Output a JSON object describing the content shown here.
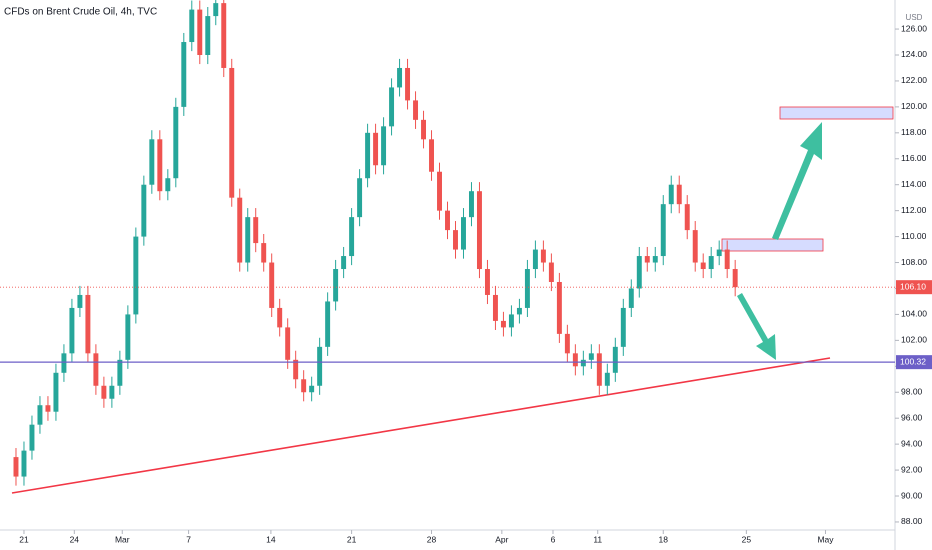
{
  "chart_data": {
    "type": "candlestick",
    "title": "CFDs on Brent Crude Oil, 4h, TVC",
    "unit": "USD",
    "up_color": "#26a69a",
    "down_color": "#ef5350",
    "grid": false,
    "xlim": [
      -2,
      110
    ],
    "xticks": [
      {
        "value": 1,
        "label": "21"
      },
      {
        "value": 7.3,
        "label": "24"
      },
      {
        "value": 13.3,
        "label": "Mar"
      },
      {
        "value": 21.6,
        "label": "7"
      },
      {
        "value": 31.9,
        "label": "14"
      },
      {
        "value": 42,
        "label": "21"
      },
      {
        "value": 52,
        "label": "28"
      },
      {
        "value": 60.8,
        "label": "Apr"
      },
      {
        "value": 67.2,
        "label": "6"
      },
      {
        "value": 72.8,
        "label": "11"
      },
      {
        "value": 81,
        "label": "18"
      },
      {
        "value": 91.4,
        "label": "25"
      },
      {
        "value": 101.3,
        "label": "May"
      }
    ],
    "ylim": [
      87.38,
      128.24
    ],
    "yticks": [
      {
        "value": 88,
        "label": "88.00"
      },
      {
        "value": 90,
        "label": "90.00"
      },
      {
        "value": 92,
        "label": "92.00"
      },
      {
        "value": 94,
        "label": "94.00"
      },
      {
        "value": 96,
        "label": "96.00"
      },
      {
        "value": 98,
        "label": "98.00"
      },
      {
        "value": 100,
        "label": "100.00"
      },
      {
        "value": 102,
        "label": "102.00"
      },
      {
        "value": 104,
        "label": "104.00"
      },
      {
        "value": 106,
        "label": "106.00"
      },
      {
        "value": 108,
        "label": "108.00"
      },
      {
        "value": 110,
        "label": "110.00"
      },
      {
        "value": 112,
        "label": "112.00"
      },
      {
        "value": 114,
        "label": "114.00"
      },
      {
        "value": 116,
        "label": "116.00"
      },
      {
        "value": 118,
        "label": "118.00"
      },
      {
        "value": 120,
        "label": "120.00"
      },
      {
        "value": 122,
        "label": "122.00"
      },
      {
        "value": 124,
        "label": "124.00"
      },
      {
        "value": 126,
        "label": "126.00"
      }
    ],
    "open": [
      93.0,
      91.5,
      93.5,
      95.5,
      97.0,
      96.5,
      99.5,
      101.0,
      104.5,
      105.5,
      101.0,
      98.5,
      97.5,
      98.5,
      100.5,
      104.0,
      110.0,
      114.0,
      117.5,
      113.5,
      114.5,
      120.0,
      125.0,
      127.5,
      124.0,
      127.0,
      128.0,
      123.0,
      113.0,
      108.0,
      111.5,
      109.5,
      108.0,
      104.5,
      103.0,
      100.5,
      99.0,
      98.0,
      98.5,
      101.5,
      105.0,
      107.5,
      108.5,
      111.5,
      114.5,
      118.0,
      115.5,
      118.5,
      121.5,
      123.0,
      120.5,
      119.0,
      117.5,
      115.0,
      112.0,
      110.5,
      109.0,
      111.5,
      113.5,
      107.5,
      105.5,
      103.5,
      103.0,
      104.0,
      104.5,
      107.5,
      109.0,
      108.0,
      106.5,
      102.5,
      101.0,
      100.0,
      100.5,
      101.0,
      98.5,
      99.5,
      101.5,
      104.5,
      106.0,
      108.5,
      108.0,
      108.5,
      112.5,
      114.0,
      112.5,
      110.5,
      108.0,
      107.5,
      108.5,
      109.0,
      107.5
    ],
    "high": [
      93.7,
      94.2,
      96.2,
      97.7,
      97.7,
      100.2,
      101.7,
      105.2,
      106.2,
      106.2,
      101.7,
      99.2,
      99.2,
      101.2,
      104.7,
      110.7,
      114.7,
      118.2,
      118.2,
      115.2,
      120.7,
      125.7,
      128.2,
      128.2,
      127.7,
      128.7,
      128.7,
      123.7,
      113.7,
      112.2,
      112.2,
      110.2,
      108.7,
      105.2,
      103.7,
      101.2,
      99.7,
      99.2,
      102.2,
      105.7,
      108.2,
      109.2,
      112.2,
      115.2,
      118.7,
      118.7,
      119.2,
      122.2,
      123.7,
      123.7,
      121.2,
      119.7,
      118.2,
      115.7,
      112.7,
      111.2,
      112.2,
      114.2,
      114.2,
      108.2,
      106.2,
      104.2,
      104.7,
      105.2,
      108.2,
      109.7,
      109.7,
      108.7,
      107.2,
      103.2,
      101.7,
      101.2,
      101.7,
      101.7,
      100.2,
      102.2,
      105.2,
      106.7,
      109.2,
      109.2,
      109.2,
      113.2,
      114.7,
      114.7,
      113.2,
      111.2,
      108.7,
      109.2,
      109.7,
      109.7,
      108.2
    ],
    "low": [
      90.8,
      90.8,
      92.8,
      94.8,
      95.8,
      95.8,
      98.8,
      100.3,
      103.8,
      100.3,
      97.8,
      96.8,
      96.8,
      97.8,
      99.8,
      103.3,
      109.3,
      113.3,
      112.8,
      112.8,
      113.8,
      119.3,
      124.3,
      123.3,
      123.3,
      126.3,
      122.3,
      112.3,
      107.3,
      107.3,
      108.8,
      107.3,
      103.8,
      102.3,
      99.8,
      98.3,
      97.3,
      97.3,
      97.8,
      100.8,
      104.3,
      106.8,
      107.8,
      110.8,
      113.8,
      114.8,
      114.8,
      117.8,
      120.8,
      119.8,
      118.3,
      116.8,
      114.3,
      111.3,
      109.8,
      108.3,
      108.3,
      110.8,
      106.8,
      104.8,
      102.8,
      102.3,
      102.3,
      103.3,
      103.8,
      106.8,
      107.3,
      105.8,
      101.8,
      100.3,
      99.3,
      99.3,
      99.8,
      97.8,
      97.8,
      98.8,
      100.8,
      103.8,
      105.3,
      107.3,
      107.3,
      107.8,
      111.8,
      111.8,
      109.8,
      107.3,
      106.8,
      106.8,
      107.8,
      106.8,
      105.4
    ],
    "close": [
      91.5,
      93.5,
      95.5,
      97.0,
      96.5,
      99.5,
      101.0,
      104.5,
      105.5,
      101.0,
      98.5,
      97.5,
      98.5,
      100.5,
      104.0,
      110.0,
      114.0,
      117.5,
      113.5,
      114.5,
      120.0,
      125.0,
      127.5,
      124.0,
      127.0,
      128.0,
      123.0,
      113.0,
      108.0,
      111.5,
      109.5,
      108.0,
      104.5,
      103.0,
      100.5,
      99.0,
      98.0,
      98.5,
      101.5,
      105.0,
      107.5,
      108.5,
      111.5,
      114.5,
      118.0,
      115.5,
      118.5,
      121.5,
      123.0,
      120.5,
      119.0,
      117.5,
      115.0,
      112.0,
      110.5,
      109.0,
      111.5,
      113.5,
      107.5,
      105.5,
      103.5,
      103.0,
      104.0,
      104.5,
      107.5,
      109.0,
      108.0,
      106.5,
      102.5,
      101.0,
      100.0,
      100.5,
      101.0,
      98.5,
      99.5,
      101.5,
      104.5,
      106.0,
      108.5,
      108.0,
      108.5,
      112.5,
      114.0,
      112.5,
      110.5,
      108.0,
      107.5,
      108.5,
      109.0,
      107.5,
      106.1
    ],
    "levels": [
      {
        "value": 100.32,
        "label": "100.32",
        "color": "#6c5fc7",
        "style": "solid"
      },
      {
        "value": 106.1,
        "label": "106.10",
        "color": "#ef5350",
        "style": "dotted"
      }
    ]
  }
}
